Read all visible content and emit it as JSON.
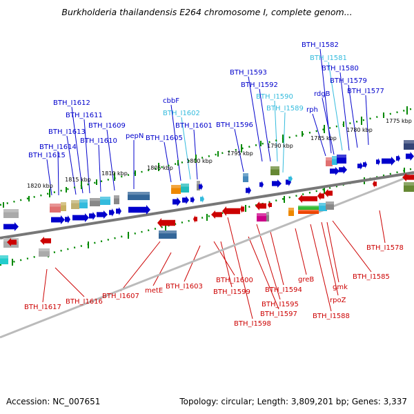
{
  "title": "Burkholderia thailandensis E264 chromosome I, complete genom...",
  "footer": {
    "accession": "Accession: NC_007651",
    "summary": "Topology: circular; Length: 3,809,201 bp; Genes: 3,337"
  },
  "colors": {
    "forward_gene": "#0000cc",
    "reverse_gene": "#cc0000",
    "highlight_gene": "#33bbdd",
    "backbone": "#777777",
    "ticks": "#008800"
  },
  "scale_labels": [
    "1820 kbp",
    "1815 kbp",
    "1810 kbp",
    "1805 kbp",
    "1800 kbp",
    "1795 kbp",
    "1790 kbp",
    "1785 kbp",
    "1780 kbp",
    "1775 kbp"
  ],
  "forward_genes": [
    "BTH_I1615",
    "BTH_I1614",
    "BTH_I1613",
    "BTH_I1612",
    "BTH_I1611",
    "BTH_I1610",
    "BTH_I1609",
    "pepN",
    "BTH_I1605",
    "cbbF",
    "BTH_I1602",
    "BTH_I1601",
    "BTH_I1596",
    "BTH_I1593",
    "BTH_I1592",
    "BTH_I1590",
    "BTH_I1589",
    "rph",
    "rdgB",
    "BTH_I1582",
    "BTH_I1581",
    "BTH_I1580",
    "BTH_I1579",
    "BTH_I1577"
  ],
  "reverse_genes": [
    "BTH_I1617",
    "BTH_I1616",
    "BTH_I1607",
    "metE",
    "BTH_I1603",
    "BTH_I1600",
    "BTH_I1599",
    "BTH_I1598",
    "BTH_I1597",
    "BTH_I1595",
    "BTH_I1594",
    "greB",
    "BTH_I1588",
    "rpoZ",
    "gmk",
    "BTH_I1585",
    "BTH_I1578"
  ]
}
